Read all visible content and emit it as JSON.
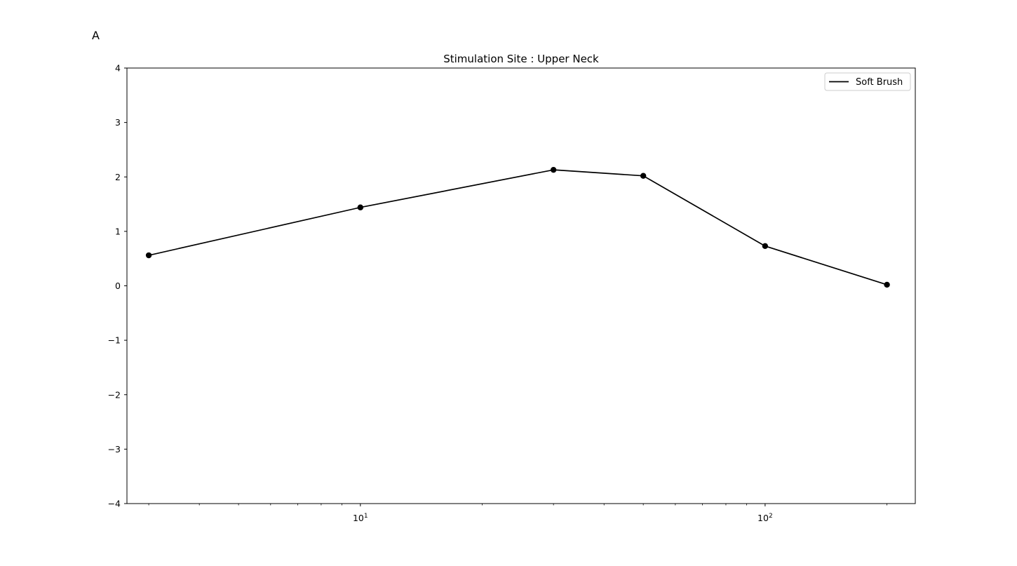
{
  "figure": {
    "panel_label": "A"
  },
  "chart_data": {
    "type": "line",
    "title": "Stimulation Site : Upper Neck",
    "xlabel": "",
    "ylabel": "",
    "xscale": "log",
    "xlim": [
      2.65,
      235
    ],
    "ylim": [
      -4,
      4
    ],
    "grid": false,
    "legend_position": "top-right",
    "yticks": [
      -4,
      -3,
      -2,
      -1,
      0,
      1,
      2,
      3,
      4
    ],
    "ytick_labels": [
      "−4",
      "−3",
      "−2",
      "−1",
      "0",
      "1",
      "2",
      "3",
      "4"
    ],
    "xticks_major": [
      10,
      100
    ],
    "xtick_labels": [
      {
        "base": "10",
        "exp": "1"
      },
      {
        "base": "10",
        "exp": "2"
      }
    ],
    "xticks_minor": [
      3,
      4,
      5,
      6,
      7,
      8,
      9,
      20,
      30,
      40,
      50,
      60,
      70,
      80,
      90,
      200
    ],
    "series": [
      {
        "name": "Soft Brush",
        "color": "#000000",
        "marker": "circle",
        "x": [
          3,
          10,
          30,
          50,
          100,
          200
        ],
        "y": [
          0.56,
          1.44,
          2.13,
          2.02,
          0.73,
          0.02
        ]
      }
    ]
  }
}
